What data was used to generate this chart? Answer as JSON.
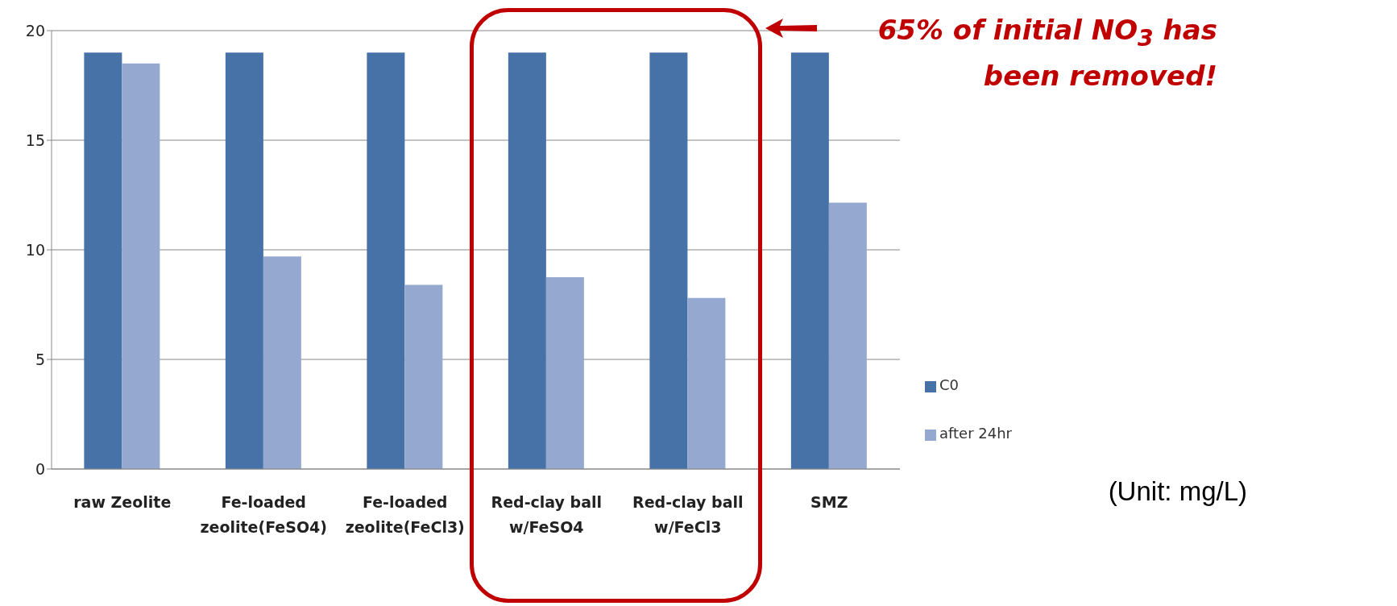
{
  "chart_data": {
    "type": "bar",
    "categories": [
      "raw Zeolite",
      "Fe-loaded zeolite(FeSO4)",
      "Fe-loaded zeolite(FeCl3)",
      "Red-clay ball w/FeSO4",
      "Red-clay ball w/FeCl3",
      "SMZ"
    ],
    "series": [
      {
        "name": "C0",
        "color": "#4672a8",
        "values": [
          19,
          19,
          19,
          19,
          19,
          19
        ]
      },
      {
        "name": "after 24hr",
        "color": "#95a9d0",
        "values": [
          18.5,
          9.7,
          8.4,
          8.75,
          7.8,
          12.15
        ]
      }
    ],
    "ylim": [
      0,
      20
    ],
    "yticks": [
      0,
      5,
      10,
      15,
      20
    ],
    "grid": "y",
    "legend": "right",
    "annotations": [
      "65% of initial NO$_{3}$ has been removed!",
      "(Unit: mg/L)"
    ]
  }
}
